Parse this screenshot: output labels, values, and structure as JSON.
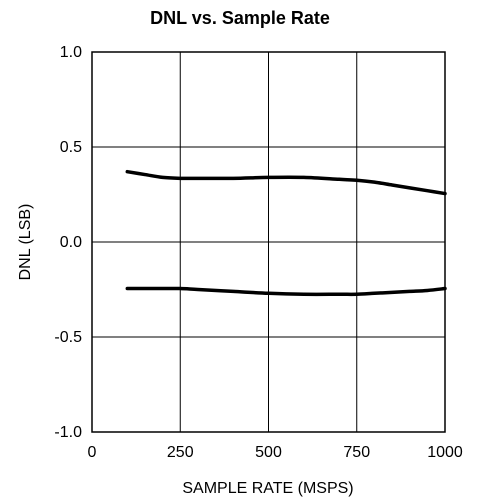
{
  "chart_data": {
    "type": "line",
    "title": "DNL vs. Sample Rate",
    "xlabel": "SAMPLE RATE (MSPS)",
    "ylabel": "DNL (LSB)",
    "xlim": [
      0,
      1000
    ],
    "ylim": [
      -1.0,
      1.0
    ],
    "x_ticks": [
      0,
      250,
      500,
      750,
      1000
    ],
    "x_tick_labels": [
      "0",
      "250",
      "500",
      "750",
      "1000"
    ],
    "y_ticks": [
      1.0,
      0.5,
      0.0,
      -0.5,
      -1.0
    ],
    "y_tick_labels": [
      "1.0",
      "0.5",
      "0.0",
      "-0.5",
      "-1.0"
    ],
    "grid": true,
    "legend": "none",
    "series": [
      {
        "x": [
          100,
          150,
          200,
          250,
          300,
          400,
          500,
          600,
          700,
          750,
          800,
          850,
          900,
          950,
          1000
        ],
        "y": [
          0.37,
          0.355,
          0.34,
          0.335,
          0.335,
          0.335,
          0.34,
          0.34,
          0.33,
          0.325,
          0.315,
          0.3,
          0.285,
          0.27,
          0.255
        ]
      },
      {
        "x": [
          100,
          150,
          200,
          250,
          300,
          400,
          500,
          600,
          700,
          750,
          800,
          850,
          900,
          950,
          1000
        ],
        "y": [
          -0.245,
          -0.245,
          -0.245,
          -0.245,
          -0.25,
          -0.26,
          -0.27,
          -0.275,
          -0.275,
          -0.275,
          -0.27,
          -0.265,
          -0.26,
          -0.255,
          -0.245
        ]
      }
    ]
  }
}
